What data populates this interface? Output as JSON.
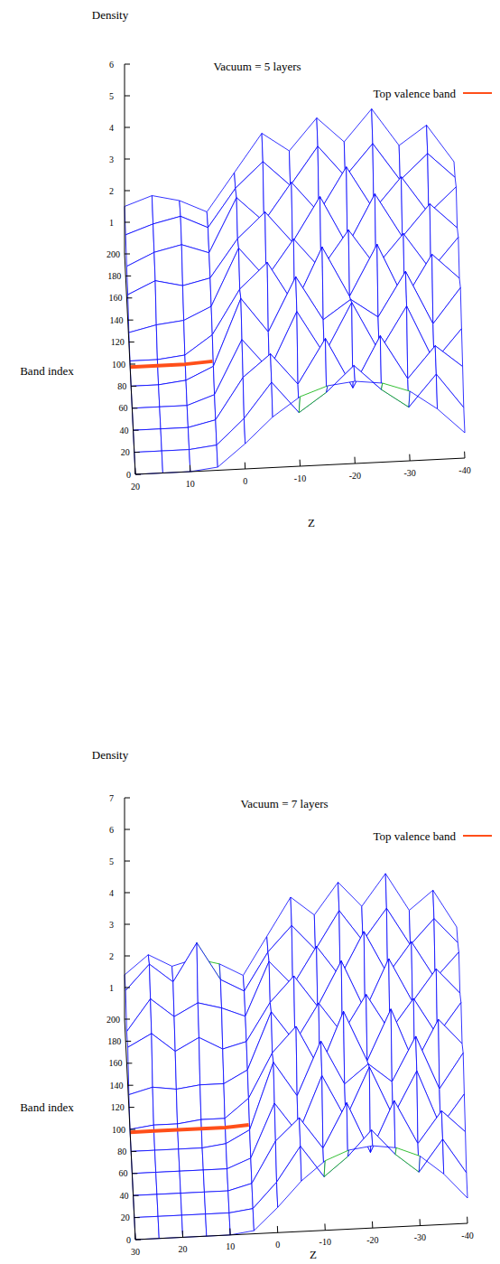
{
  "chart_data": [
    {
      "type": "surface3d",
      "title": "Vacuum = 5 layers",
      "x_label": "Z",
      "y_label": "Band index",
      "z_label": "Density",
      "xlim": [
        -40,
        20
      ],
      "xticks": [
        20,
        10,
        0,
        -10,
        -20,
        -30,
        -40
      ],
      "ylim": [
        0,
        200
      ],
      "yticks": [
        0,
        20,
        40,
        60,
        80,
        100,
        120,
        140,
        160,
        180,
        200
      ],
      "zlim": [
        0,
        6
      ],
      "zticks": [
        1,
        2,
        3,
        4,
        5,
        6
      ],
      "legend": "upper right",
      "surface": {
        "color": "#0000ff",
        "x": [
          20,
          15,
          10,
          5,
          0,
          -5,
          -10,
          -15,
          -20,
          -25,
          -30,
          -35,
          -40
        ],
        "y": [
          0,
          20,
          40,
          60,
          80,
          100,
          120,
          140,
          160,
          180,
          200
        ],
        "values": [
          [
            0,
            0,
            0,
            0.1,
            0.8,
            1.6,
            2.2,
            2.5,
            2.6,
            2.5,
            2.2,
            1.6,
            0.8
          ],
          [
            0,
            0,
            0,
            0.1,
            0.9,
            2.0,
            1.0,
            1.6,
            2.4,
            1.6,
            1.0,
            2.0,
            0.9
          ],
          [
            0,
            0,
            0,
            0.2,
            1.5,
            2.2,
            1.2,
            2.6,
            1.0,
            2.6,
            1.2,
            2.2,
            1.5
          ],
          [
            0,
            0,
            0,
            0.3,
            2.0,
            1.0,
            2.8,
            1.4,
            3.0,
            1.4,
            2.8,
            1.0,
            2.0
          ],
          [
            0,
            0,
            0.1,
            0.5,
            2.6,
            1.5,
            3.2,
            1.8,
            2.4,
            1.8,
            3.2,
            1.5,
            2.6
          ],
          [
            0.1,
            0.1,
            0.2,
            0.8,
            2.2,
            3.0,
            1.6,
            3.4,
            1.8,
            3.4,
            1.6,
            3.0,
            2.2
          ],
          [
            0.3,
            0.5,
            0.6,
            1.0,
            2.8,
            1.8,
            3.0,
            2.0,
            3.2,
            2.0,
            3.0,
            1.8,
            2.8
          ],
          [
            0.8,
            1.2,
            1.0,
            1.2,
            2.4,
            3.2,
            2.2,
            3.6,
            2.0,
            3.6,
            2.2,
            3.2,
            2.4
          ],
          [
            1.0,
            1.4,
            1.6,
            1.3,
            3.0,
            2.2,
            3.4,
            2.4,
            3.8,
            2.4,
            3.4,
            2.2,
            3.0
          ],
          [
            1.3,
            1.6,
            1.8,
            1.4,
            2.6,
            3.4,
            2.6,
            3.8,
            2.8,
            3.8,
            2.6,
            3.4,
            2.6
          ],
          [
            1.5,
            1.8,
            1.6,
            1.2,
            2.4,
            3.6,
            3.0,
            4.0,
            3.2,
            4.2,
            3.0,
            3.6,
            2.4
          ]
        ]
      },
      "series": [
        {
          "name": "Top valence band",
          "color": "#ff4f1a",
          "x": [
            20,
            15,
            10,
            5
          ],
          "y": [
            96,
            96,
            96,
            96
          ],
          "values": [
            0.05,
            0.05,
            0.05,
            0.1
          ]
        }
      ]
    },
    {
      "type": "surface3d",
      "title": "Vacuum = 7 layers",
      "x_label": "Z",
      "y_label": "Band index",
      "z_label": "Density",
      "xlim": [
        -40,
        30
      ],
      "xticks": [
        30,
        20,
        10,
        0,
        -10,
        -20,
        -30,
        -40
      ],
      "ylim": [
        0,
        200
      ],
      "yticks": [
        0,
        20,
        40,
        60,
        80,
        100,
        120,
        140,
        160,
        180,
        200
      ],
      "zlim": [
        0,
        7
      ],
      "zticks": [
        1,
        2,
        3,
        4,
        5,
        6,
        7
      ],
      "legend": "upper right",
      "surface": {
        "color": "#0000ff",
        "x": [
          30,
          25,
          20,
          15,
          10,
          5,
          0,
          -5,
          -10,
          -15,
          -20,
          -25,
          -30,
          -35,
          -40
        ],
        "y": [
          0,
          20,
          40,
          60,
          80,
          100,
          120,
          140,
          160,
          180,
          200
        ],
        "values": [
          [
            0,
            0,
            0,
            0,
            0,
            0.1,
            0.8,
            1.6,
            2.2,
            2.5,
            2.6,
            2.5,
            2.2,
            1.6,
            0.8
          ],
          [
            0,
            0,
            0,
            0,
            0,
            0.1,
            0.9,
            2.0,
            1.0,
            1.6,
            2.4,
            1.6,
            1.0,
            2.0,
            0.9
          ],
          [
            0,
            0,
            0,
            0,
            0,
            0.2,
            1.5,
            2.2,
            1.2,
            2.6,
            1.0,
            2.6,
            1.2,
            2.2,
            1.5
          ],
          [
            0,
            0,
            0,
            0,
            0,
            0.3,
            2.0,
            1.0,
            2.8,
            1.4,
            3.0,
            1.4,
            2.8,
            1.0,
            2.0
          ],
          [
            0,
            0,
            0,
            0,
            0.1,
            0.5,
            2.6,
            1.5,
            3.2,
            1.8,
            2.4,
            1.8,
            3.2,
            1.5,
            2.6
          ],
          [
            0,
            0.1,
            0.1,
            0.2,
            0.2,
            0.8,
            2.2,
            3.0,
            1.6,
            3.4,
            1.8,
            3.4,
            1.6,
            3.0,
            2.2
          ],
          [
            0.4,
            0.6,
            0.5,
            0.6,
            0.6,
            1.0,
            2.8,
            1.8,
            3.0,
            2.0,
            3.2,
            2.0,
            3.0,
            1.8,
            2.8
          ],
          [
            1.2,
            1.6,
            1.0,
            1.4,
            1.0,
            1.2,
            2.4,
            3.2,
            2.2,
            3.6,
            2.0,
            3.6,
            2.2,
            3.2,
            2.4
          ],
          [
            1.0,
            2.0,
            1.4,
            1.8,
            1.6,
            1.3,
            3.0,
            2.2,
            3.4,
            2.4,
            3.8,
            2.4,
            3.4,
            2.2,
            3.0
          ],
          [
            1.6,
            2.4,
            1.8,
            3.0,
            1.8,
            1.4,
            2.6,
            3.4,
            2.6,
            3.8,
            2.8,
            3.8,
            2.6,
            3.4,
            2.6
          ],
          [
            1.4,
            2.0,
            1.6,
            1.8,
            1.6,
            1.2,
            2.4,
            3.6,
            3.0,
            4.0,
            3.2,
            4.2,
            3.0,
            3.6,
            2.4
          ]
        ]
      },
      "series": [
        {
          "name": "Top valence band",
          "color": "#ff4f1a",
          "x": [
            30,
            25,
            20,
            15,
            10,
            5
          ],
          "y": [
            96,
            96,
            96,
            96,
            96,
            96
          ],
          "values": [
            0.05,
            0.05,
            0.05,
            0.05,
            0.05,
            0.1
          ]
        }
      ]
    }
  ]
}
